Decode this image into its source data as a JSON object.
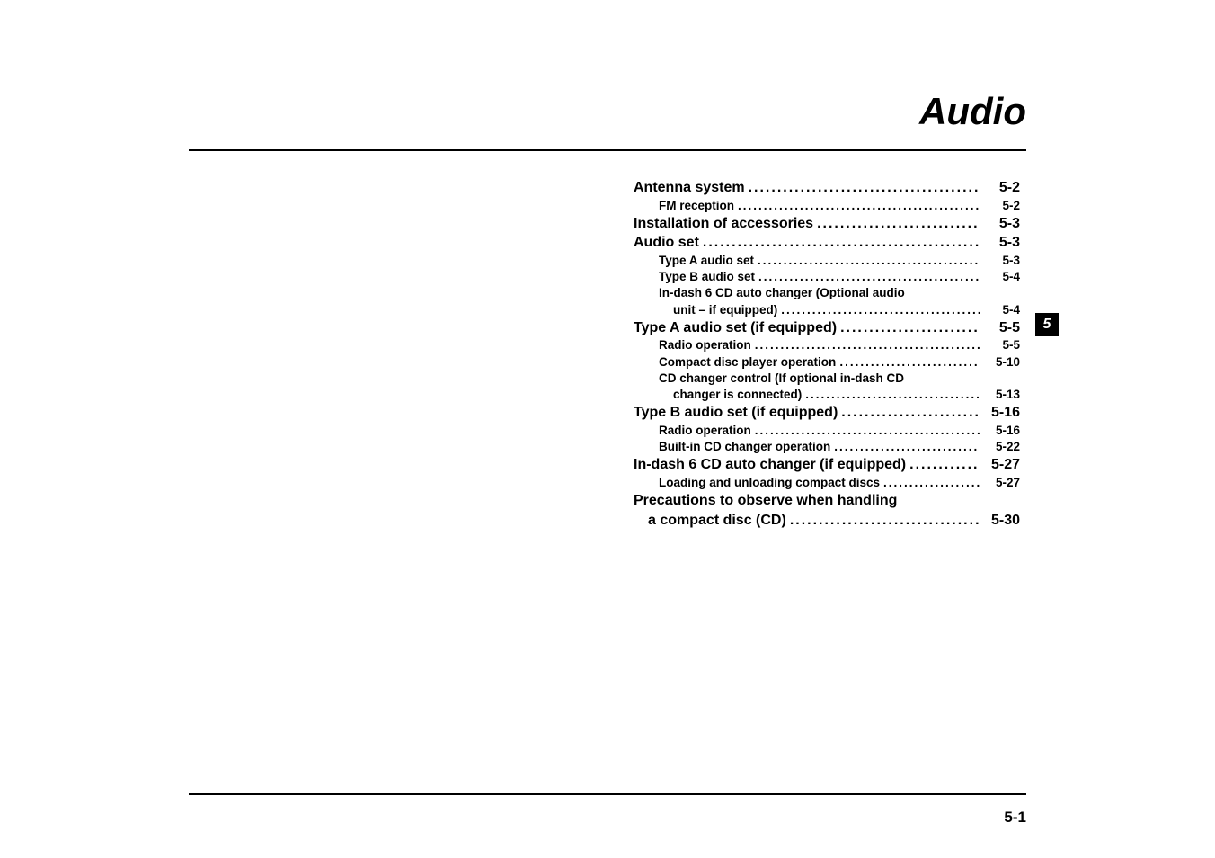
{
  "chapter": {
    "title": "Audio",
    "tab_number": "5",
    "page_number": "5-1"
  },
  "toc": [
    {
      "level": 1,
      "label": "Antenna system",
      "page": "5-2",
      "leader": true
    },
    {
      "level": 2,
      "label": "FM reception",
      "page": "5-2",
      "leader": true
    },
    {
      "level": 1,
      "label": "Installation of accessories",
      "page": "5-3",
      "leader": true
    },
    {
      "level": 1,
      "label": "Audio set",
      "page": "5-3",
      "leader": true
    },
    {
      "level": 2,
      "label": "Type A audio set",
      "page": "5-3",
      "leader": true
    },
    {
      "level": 2,
      "label": "Type B audio set",
      "page": "5-4",
      "leader": true
    },
    {
      "level": 2,
      "label": "In-dash 6 CD auto changer (Optional audio",
      "page": "",
      "leader": false
    },
    {
      "level": 2,
      "label": "unit – if equipped)",
      "page": "5-4",
      "leader": true,
      "continuation": true
    },
    {
      "level": 1,
      "label": "Type A audio set (if equipped)",
      "page": "5-5",
      "leader": true
    },
    {
      "level": 2,
      "label": "Radio operation",
      "page": "5-5",
      "leader": true
    },
    {
      "level": 2,
      "label": "Compact disc player operation",
      "page": "5-10",
      "leader": true
    },
    {
      "level": 2,
      "label": "CD changer control (If optional in-dash CD",
      "page": "",
      "leader": false
    },
    {
      "level": 2,
      "label": "changer is connected)",
      "page": "5-13",
      "leader": true,
      "continuation": true
    },
    {
      "level": 1,
      "label": "Type B audio set (if equipped)",
      "page": "5-16",
      "leader": true
    },
    {
      "level": 2,
      "label": "Radio operation",
      "page": "5-16",
      "leader": true
    },
    {
      "level": 2,
      "label": "Built-in CD changer operation",
      "page": "5-22",
      "leader": true
    },
    {
      "level": 1,
      "label": "In-dash 6 CD auto changer (if equipped)",
      "page": "5-27",
      "leader": true
    },
    {
      "level": 2,
      "label": "Loading and unloading compact discs",
      "page": "5-27",
      "leader": true
    },
    {
      "level": 1,
      "label": "Precautions to observe when handling",
      "page": "",
      "leader": false
    },
    {
      "level": 1,
      "label": "a compact disc (CD)",
      "page": "5-30",
      "leader": true,
      "continuation": true
    }
  ],
  "styling": {
    "page_bg": "#ffffff",
    "text_color": "#000000",
    "title_fontsize": 42,
    "level1_fontsize": 16,
    "level2_fontsize": 13.5,
    "tab_bg": "#000000",
    "tab_fg": "#ffffff",
    "rule_color": "#000000",
    "leader_char": "."
  }
}
